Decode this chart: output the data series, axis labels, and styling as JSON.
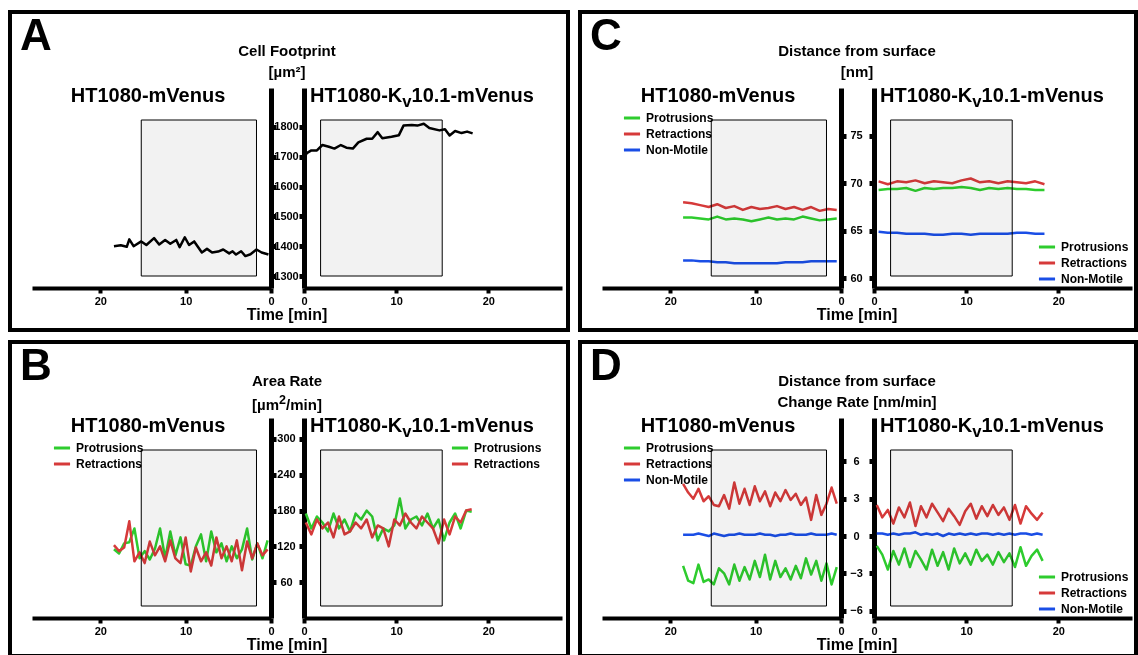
{
  "chart_data": [
    {
      "type": "line",
      "title": "HT1080-mVenus",
      "annotations": [
        "A",
        "Cell Footprint"
      ],
      "ylabel": "[µm²]",
      "xlabel": "Time [min]",
      "xlim": [
        28,
        0
      ],
      "xticks": [
        20,
        10,
        0
      ],
      "ylim": [
        1260,
        1930
      ],
      "yticks": [
        1300,
        1400,
        1500,
        1600,
        1700,
        1800
      ],
      "bands": [
        {
          "axis": "x",
          "from": 15.2,
          "to": 1.7
        }
      ],
      "series": [
        {
          "color": "#000000",
          "x": [
            18.4,
            17.6,
            16.9,
            16.6,
            16.1,
            15.2,
            14.6,
            13.7,
            13.1,
            12.4,
            11.8,
            11.1,
            10.7,
            10.1,
            9.6,
            9.0,
            8.1,
            7.5,
            6.9,
            6.2,
            5.6,
            4.9,
            4.5,
            4.1,
            3.5,
            3.0,
            2.4,
            1.7,
            1.1,
            0.3
          ],
          "values": [
            1400,
            1403,
            1398,
            1423,
            1400,
            1416,
            1404,
            1427,
            1406,
            1421,
            1408,
            1421,
            1397,
            1430,
            1404,
            1416,
            1379,
            1391,
            1379,
            1382,
            1389,
            1376,
            1383,
            1372,
            1383,
            1367,
            1373,
            1389,
            1379,
            1372
          ]
        }
      ]
    },
    {
      "type": "line",
      "title": "HT1080-K$_{v}$10.1-mVenus",
      "tick_labels": "x",
      "xlim": [
        0,
        28
      ],
      "xticks": [
        0,
        10,
        20
      ],
      "ylim": [
        1260,
        1930
      ],
      "yticks": [
        1300,
        1400,
        1500,
        1600,
        1700,
        1800
      ],
      "bands": [
        {
          "axis": "x",
          "from": 1.8,
          "to": 15.0
        }
      ],
      "series": [
        {
          "color": "#000000",
          "x": [
            0,
            0.3,
            0.8,
            1.4,
            2.0,
            2.7,
            3.3,
            4.0,
            4.6,
            5.3,
            5.9,
            6.8,
            7.4,
            8.0,
            8.5,
            9.5,
            10.3,
            10.8,
            11.7,
            12.3,
            13.0,
            13.6,
            14.7,
            15.3,
            15.8,
            16.4,
            17.1,
            17.7,
            18.3
          ],
          "values": [
            1694,
            1712,
            1721,
            1721,
            1739,
            1733,
            1727,
            1739,
            1730,
            1727,
            1748,
            1760,
            1760,
            1782,
            1762,
            1767,
            1772,
            1804,
            1806,
            1804,
            1810,
            1796,
            1788,
            1792,
            1771,
            1786,
            1779,
            1784,
            1778
          ]
        }
      ]
    },
    {
      "type": "line",
      "title": "HT1080-mVenus",
      "annotations": [
        "C",
        "Distance from surface"
      ],
      "ylabel": "[nm]",
      "xlabel": "Time [min]",
      "xlim": [
        28,
        0
      ],
      "xticks": [
        20,
        10,
        0
      ],
      "ylim": [
        59,
        80
      ],
      "yticks": [
        60,
        65,
        70,
        75
      ],
      "legend": "top left",
      "bands": [
        {
          "axis": "x",
          "from": 15.2,
          "to": 1.7
        }
      ],
      "x": [
        18.5,
        17.5,
        16.5,
        15.5,
        14.5,
        13.5,
        12.5,
        11.5,
        10.5,
        9.5,
        8.5,
        7.5,
        6.5,
        5.5,
        4.5,
        3.5,
        2.5,
        1.5,
        0.5
      ],
      "series": [
        {
          "name": "Protrusions",
          "color": "#2ecc2e",
          "values": [
            66.4,
            66.4,
            66.3,
            66.2,
            66.5,
            66.2,
            66.3,
            66.2,
            66.0,
            66.2,
            66.4,
            66.2,
            66.3,
            66.2,
            66.5,
            66.3,
            66.1,
            66.2,
            66.3
          ]
        },
        {
          "name": "Retractions",
          "color": "#d63a3a",
          "values": [
            68.0,
            67.9,
            67.7,
            67.5,
            67.8,
            67.4,
            67.6,
            67.2,
            67.5,
            67.3,
            67.4,
            67.6,
            67.3,
            67.5,
            67.2,
            67.5,
            67.1,
            67.3,
            67.2
          ]
        },
        {
          "name": "Non-Motile",
          "color": "#1a4ee6",
          "values": [
            61.9,
            61.9,
            61.8,
            61.8,
            61.7,
            61.7,
            61.6,
            61.6,
            61.6,
            61.6,
            61.6,
            61.6,
            61.7,
            61.7,
            61.7,
            61.8,
            61.8,
            61.8,
            61.8
          ]
        }
      ]
    },
    {
      "type": "line",
      "title": "HT1080-K$_{v}$10.1-mVenus",
      "tick_labels": "x",
      "xlim": [
        0,
        28
      ],
      "xticks": [
        0,
        10,
        20
      ],
      "ylim": [
        59,
        80
      ],
      "yticks": [
        60,
        65,
        70,
        75
      ],
      "legend": "bottom right",
      "bands": [
        {
          "axis": "x",
          "from": 1.8,
          "to": 15.0
        }
      ],
      "x": [
        0.5,
        1.5,
        2.5,
        3.5,
        4.5,
        5.5,
        6.5,
        7.5,
        8.5,
        9.5,
        10.5,
        11.5,
        12.5,
        13.5,
        14.5,
        15.5,
        16.5,
        17.5,
        18.5
      ],
      "series": [
        {
          "name": "Protrusions",
          "color": "#2ecc2e",
          "values": [
            69.3,
            69.4,
            69.4,
            69.5,
            69.2,
            69.5,
            69.4,
            69.5,
            69.5,
            69.6,
            69.5,
            69.3,
            69.5,
            69.4,
            69.5,
            69.4,
            69.4,
            69.3,
            69.3
          ]
        },
        {
          "name": "Retractions",
          "color": "#d63a3a",
          "values": [
            70.2,
            69.9,
            70.2,
            70.1,
            70.3,
            70.0,
            70.2,
            70.1,
            70.0,
            70.3,
            70.5,
            70.1,
            70.2,
            70.0,
            70.2,
            70.1,
            70.0,
            70.2,
            69.9
          ]
        },
        {
          "name": "Non-Motile",
          "color": "#1a4ee6",
          "values": [
            64.9,
            64.8,
            64.8,
            64.7,
            64.7,
            64.7,
            64.6,
            64.6,
            64.7,
            64.7,
            64.6,
            64.7,
            64.7,
            64.7,
            64.7,
            64.8,
            64.8,
            64.7,
            64.7
          ]
        }
      ]
    },
    {
      "type": "line",
      "title": "HT1080-mVenus",
      "annotations": [
        "B",
        "Area Rate"
      ],
      "ylabel": "[µm$^{2}$/min]",
      "xlabel": "Time [min]",
      "xlim": [
        28,
        0
      ],
      "xticks": [
        20,
        10,
        0
      ],
      "ylim": [
        0,
        335
      ],
      "yticks": [
        60,
        120,
        180,
        240,
        300
      ],
      "legend": "top left",
      "bands": [
        {
          "axis": "x",
          "from": 15.2,
          "to": 1.7
        }
      ],
      "x": [
        18.4,
        17.8,
        17.2,
        16.6,
        16.0,
        15.4,
        14.8,
        14.2,
        13.6,
        13.0,
        12.4,
        11.8,
        11.2,
        10.6,
        10.0,
        9.4,
        8.8,
        8.2,
        7.6,
        7.0,
        6.4,
        5.8,
        5.2,
        4.6,
        4.0,
        3.4,
        2.8,
        2.2,
        1.6,
        1.0,
        0.4
      ],
      "series": [
        {
          "name": "Protrusions",
          "color": "#2ecc2e",
          "values": [
            115,
            108,
            125,
            127,
            150,
            100,
            112,
            98,
            116,
            150,
            100,
            145,
            105,
            135,
            90,
            88,
            120,
            140,
            95,
            145,
            110,
            125,
            95,
            120,
            100,
            115,
            150,
            98,
            125,
            100,
            130
          ]
        },
        {
          "name": "Retractions",
          "color": "#d63a3a",
          "values": [
            122,
            112,
            118,
            162,
            95,
            110,
            92,
            128,
            105,
            120,
            95,
            130,
            100,
            92,
            135,
            78,
            118,
            95,
            110,
            88,
            135,
            100,
            120,
            95,
            130,
            80,
            128,
            100,
            125,
            105,
            115
          ]
        }
      ]
    },
    {
      "type": "line",
      "title": "HT1080-K$_{v}$10.1-mVenus",
      "tick_labels": "x",
      "xlim": [
        0,
        28
      ],
      "xticks": [
        0,
        10,
        20
      ],
      "ylim": [
        0,
        335
      ],
      "yticks": [
        60,
        120,
        180,
        240,
        300
      ],
      "legend": "top right",
      "bands": [
        {
          "axis": "x",
          "from": 1.8,
          "to": 15.0
        }
      ],
      "x": [
        0.2,
        0.8,
        1.4,
        2.0,
        2.6,
        3.2,
        3.8,
        4.4,
        5.0,
        5.6,
        6.2,
        6.8,
        7.4,
        8.0,
        8.6,
        9.2,
        9.8,
        10.4,
        11.0,
        11.6,
        12.2,
        12.8,
        13.4,
        14.0,
        14.6,
        15.2,
        15.8,
        16.4,
        17.0,
        17.6,
        18.2
      ],
      "series": [
        {
          "name": "Protrusions",
          "color": "#2ecc2e",
          "values": [
            175,
            150,
            170,
            160,
            145,
            175,
            150,
            165,
            145,
            175,
            165,
            180,
            170,
            130,
            150,
            145,
            155,
            200,
            150,
            165,
            170,
            155,
            175,
            150,
            165,
            130,
            160,
            175,
            150,
            180,
            178
          ]
        },
        {
          "name": "Retractions",
          "color": "#d63a3a",
          "values": [
            160,
            140,
            165,
            150,
            160,
            135,
            170,
            140,
            145,
            160,
            150,
            165,
            135,
            155,
            150,
            120,
            165,
            155,
            175,
            160,
            150,
            170,
            160,
            150,
            125,
            165,
            140,
            170,
            160,
            180,
            182
          ]
        }
      ]
    },
    {
      "type": "line",
      "title": "HT1080-mVenus",
      "annotations": [
        "D",
        "Distance from surface"
      ],
      "ylabel": "Change Rate [nm/min]",
      "xlabel": "Time [min]",
      "xlim": [
        28,
        0
      ],
      "xticks": [
        20,
        10,
        0
      ],
      "ylim": [
        -6.6,
        9.5
      ],
      "yticks": [
        -6,
        -3,
        0,
        3,
        6
      ],
      "legend": "top left",
      "bands": [
        {
          "axis": "x",
          "from": 15.2,
          "to": 1.7
        }
      ],
      "x": [
        18.5,
        17.9,
        17.3,
        16.7,
        16.1,
        15.5,
        14.9,
        14.3,
        13.7,
        13.1,
        12.5,
        11.9,
        11.3,
        10.7,
        10.1,
        9.5,
        8.9,
        8.3,
        7.7,
        7.1,
        6.5,
        5.9,
        5.3,
        4.7,
        4.1,
        3.5,
        2.9,
        2.3,
        1.7,
        1.1,
        0.5
      ],
      "series": [
        {
          "name": "Protrusions",
          "color": "#2ecc2e",
          "values": [
            -2.4,
            -3.6,
            -3.8,
            -2.3,
            -3.7,
            -3.5,
            -3.9,
            -2.6,
            -3.0,
            -3.9,
            -2.3,
            -3.6,
            -2.5,
            -3.5,
            -2.0,
            -3.3,
            -1.5,
            -3.5,
            -2.0,
            -3.3,
            -2.6,
            -3.5,
            -2.4,
            -3.4,
            -1.8,
            -3.1,
            -2.0,
            -3.6,
            -2.2,
            -3.9,
            -2.5
          ]
        },
        {
          "name": "Retractions",
          "color": "#d63a3a",
          "values": [
            4.2,
            3.5,
            3.0,
            3.8,
            2.8,
            3.2,
            2.5,
            2.4,
            3.3,
            2.2,
            4.3,
            2.6,
            3.8,
            2.5,
            4.0,
            2.8,
            3.6,
            2.4,
            3.5,
            2.8,
            3.7,
            2.9,
            3.4,
            2.5,
            3.1,
            1.3,
            3.3,
            1.7,
            2.6,
            3.9,
            2.6
          ]
        },
        {
          "name": "Non-Motile",
          "color": "#1a4ee6",
          "values": [
            0.1,
            0.1,
            0.1,
            0.2,
            0.1,
            0.0,
            0.2,
            0.1,
            0.0,
            0.1,
            0.1,
            0.2,
            0.1,
            0.1,
            0.1,
            0.2,
            0.1,
            0.1,
            0.0,
            0.1,
            0.1,
            0.2,
            0.1,
            0.1,
            0.1,
            0.2,
            0.1,
            0.1,
            0.1,
            0.2,
            0.1
          ]
        }
      ]
    },
    {
      "type": "line",
      "title": "HT1080-K$_{v}$10.1-mVenus",
      "tick_labels": "x",
      "xlim": [
        0,
        28
      ],
      "xticks": [
        0,
        10,
        20
      ],
      "ylim": [
        -6.6,
        9.5
      ],
      "yticks": [
        -6,
        -3,
        0,
        3,
        6
      ],
      "legend": "bottom right",
      "bands": [
        {
          "axis": "x",
          "from": 1.8,
          "to": 15.0
        }
      ],
      "x": [
        0.3,
        0.9,
        1.5,
        2.1,
        2.7,
        3.3,
        3.9,
        4.5,
        5.1,
        5.7,
        6.3,
        6.9,
        7.5,
        8.1,
        8.7,
        9.3,
        9.9,
        10.5,
        11.1,
        11.7,
        12.3,
        12.9,
        13.5,
        14.1,
        14.7,
        15.3,
        15.9,
        16.5,
        17.1,
        17.7,
        18.3
      ],
      "series": [
        {
          "name": "Protrusions",
          "color": "#2ecc2e",
          "values": [
            -0.8,
            -1.5,
            -2.7,
            -1.2,
            -2.3,
            -1.0,
            -2.5,
            -1.2,
            -1.9,
            -2.7,
            -1.1,
            -2.4,
            -1.3,
            -2.7,
            -1.0,
            -2.2,
            -1.4,
            -2.3,
            -1.1,
            -2.0,
            -1.5,
            -2.3,
            -1.3,
            -2.1,
            -1.4,
            -2.5,
            -0.9,
            -2.4,
            -1.6,
            -1.1,
            -2.0
          ]
        },
        {
          "name": "Retractions",
          "color": "#d63a3a",
          "values": [
            2.5,
            1.5,
            2.1,
            1.0,
            2.3,
            1.5,
            2.7,
            0.8,
            2.4,
            1.5,
            2.6,
            1.9,
            1.2,
            2.2,
            1.6,
            0.9,
            2.0,
            2.6,
            1.4,
            2.4,
            1.6,
            2.5,
            1.7,
            2.3,
            1.3,
            2.5,
            1.0,
            2.4,
            1.8,
            1.3,
            1.9
          ]
        },
        {
          "name": "Non-Motile",
          "color": "#1a4ee6",
          "values": [
            0.2,
            0.2,
            0.1,
            0.2,
            0.1,
            0.2,
            0.2,
            0.3,
            0.1,
            0.2,
            0.1,
            0.2,
            0.0,
            0.2,
            0.1,
            0.2,
            0.1,
            0.2,
            0.1,
            0.2,
            0.2,
            0.1,
            0.2,
            0.1,
            0.2,
            0.1,
            0.2,
            0.2,
            0.1,
            0.2,
            0.1
          ]
        }
      ]
    }
  ]
}
